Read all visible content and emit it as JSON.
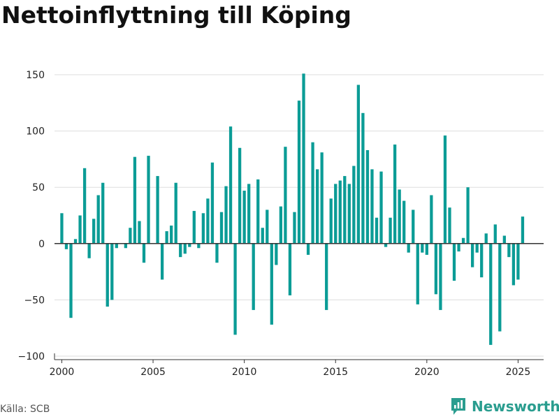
{
  "page": {
    "title": "Nettoinflyttning till Köping",
    "source": "Källa: SCB",
    "brand": "Newsworthy"
  },
  "colors": {
    "bar": "#0b9c96",
    "brand": "#2a9d8f",
    "grid": "#dddddd",
    "zero_line": "#333333"
  },
  "chart_data": {
    "type": "bar",
    "title": "Nettoinflyttning till Köping",
    "xlabel": "",
    "ylabel": "",
    "ylim": [
      -100,
      150
    ],
    "xlim": [
      1999.6,
      2026.4
    ],
    "yticks": [
      -100,
      -50,
      0,
      50,
      100,
      150
    ],
    "ytick_labels": [
      "−100",
      "−50",
      "0",
      "50",
      "100",
      "150"
    ],
    "xticks": [
      2000,
      2005,
      2010,
      2015,
      2020,
      2025
    ],
    "xtick_labels": [
      "2000",
      "2005",
      "2010",
      "2015",
      "2020",
      "2025"
    ],
    "grid": "horizontal",
    "frequency": "quarterly",
    "bar_width_years": 0.2,
    "series": [
      {
        "values": [
          {
            "x": "2000 Q1",
            "y": 27
          },
          {
            "x": "2000 Q2",
            "y": -5
          },
          {
            "x": "2000 Q3",
            "y": -66
          },
          {
            "x": "2000 Q4",
            "y": 4
          },
          {
            "x": "2001 Q1",
            "y": 25
          },
          {
            "x": "2001 Q2",
            "y": 67
          },
          {
            "x": "2001 Q3",
            "y": -13
          },
          {
            "x": "2001 Q4",
            "y": 22
          },
          {
            "x": "2002 Q1",
            "y": 43
          },
          {
            "x": "2002 Q2",
            "y": 54
          },
          {
            "x": "2002 Q3",
            "y": -56
          },
          {
            "x": "2002 Q4",
            "y": -50
          },
          {
            "x": "2003 Q1",
            "y": -4
          },
          {
            "x": "2003 Q2",
            "y": 0
          },
          {
            "x": "2003 Q3",
            "y": -4
          },
          {
            "x": "2003 Q4",
            "y": 14
          },
          {
            "x": "2004 Q1",
            "y": 77
          },
          {
            "x": "2004 Q2",
            "y": 20
          },
          {
            "x": "2004 Q3",
            "y": -17
          },
          {
            "x": "2004 Q4",
            "y": 78
          },
          {
            "x": "2005 Q1",
            "y": 0
          },
          {
            "x": "2005 Q2",
            "y": 60
          },
          {
            "x": "2005 Q3",
            "y": -32
          },
          {
            "x": "2005 Q4",
            "y": 11
          },
          {
            "x": "2006 Q1",
            "y": 16
          },
          {
            "x": "2006 Q2",
            "y": 54
          },
          {
            "x": "2006 Q3",
            "y": -12
          },
          {
            "x": "2006 Q4",
            "y": -9
          },
          {
            "x": "2007 Q1",
            "y": -3
          },
          {
            "x": "2007 Q2",
            "y": 29
          },
          {
            "x": "2007 Q3",
            "y": -4
          },
          {
            "x": "2007 Q4",
            "y": 27
          },
          {
            "x": "2008 Q1",
            "y": 40
          },
          {
            "x": "2008 Q2",
            "y": 72
          },
          {
            "x": "2008 Q3",
            "y": -17
          },
          {
            "x": "2008 Q4",
            "y": 28
          },
          {
            "x": "2009 Q1",
            "y": 51
          },
          {
            "x": "2009 Q2",
            "y": 104
          },
          {
            "x": "2009 Q3",
            "y": -81
          },
          {
            "x": "2009 Q4",
            "y": 85
          },
          {
            "x": "2010 Q1",
            "y": 47
          },
          {
            "x": "2010 Q2",
            "y": 53
          },
          {
            "x": "2010 Q3",
            "y": -59
          },
          {
            "x": "2010 Q4",
            "y": 57
          },
          {
            "x": "2011 Q1",
            "y": 14
          },
          {
            "x": "2011 Q2",
            "y": 30
          },
          {
            "x": "2011 Q3",
            "y": -72
          },
          {
            "x": "2011 Q4",
            "y": -19
          },
          {
            "x": "2012 Q1",
            "y": 33
          },
          {
            "x": "2012 Q2",
            "y": 86
          },
          {
            "x": "2012 Q3",
            "y": -46
          },
          {
            "x": "2012 Q4",
            "y": 28
          },
          {
            "x": "2013 Q1",
            "y": 127
          },
          {
            "x": "2013 Q2",
            "y": 151
          },
          {
            "x": "2013 Q3",
            "y": -10
          },
          {
            "x": "2013 Q4",
            "y": 90
          },
          {
            "x": "2014 Q1",
            "y": 66
          },
          {
            "x": "2014 Q2",
            "y": 81
          },
          {
            "x": "2014 Q3",
            "y": -59
          },
          {
            "x": "2014 Q4",
            "y": 40
          },
          {
            "x": "2015 Q1",
            "y": 53
          },
          {
            "x": "2015 Q2",
            "y": 56
          },
          {
            "x": "2015 Q3",
            "y": 60
          },
          {
            "x": "2015 Q4",
            "y": 53
          },
          {
            "x": "2016 Q1",
            "y": 69
          },
          {
            "x": "2016 Q2",
            "y": 141
          },
          {
            "x": "2016 Q3",
            "y": 116
          },
          {
            "x": "2016 Q4",
            "y": 83
          },
          {
            "x": "2017 Q1",
            "y": 66
          },
          {
            "x": "2017 Q2",
            "y": 23
          },
          {
            "x": "2017 Q3",
            "y": 64
          },
          {
            "x": "2017 Q4",
            "y": -3
          },
          {
            "x": "2018 Q1",
            "y": 23
          },
          {
            "x": "2018 Q2",
            "y": 88
          },
          {
            "x": "2018 Q3",
            "y": 48
          },
          {
            "x": "2018 Q4",
            "y": 38
          },
          {
            "x": "2019 Q1",
            "y": -8
          },
          {
            "x": "2019 Q2",
            "y": 30
          },
          {
            "x": "2019 Q3",
            "y": -54
          },
          {
            "x": "2019 Q4",
            "y": -8
          },
          {
            "x": "2020 Q1",
            "y": -10
          },
          {
            "x": "2020 Q2",
            "y": 43
          },
          {
            "x": "2020 Q3",
            "y": -45
          },
          {
            "x": "2020 Q4",
            "y": -59
          },
          {
            "x": "2021 Q1",
            "y": 96
          },
          {
            "x": "2021 Q2",
            "y": 32
          },
          {
            "x": "2021 Q3",
            "y": -33
          },
          {
            "x": "2021 Q4",
            "y": -7
          },
          {
            "x": "2022 Q1",
            "y": 5
          },
          {
            "x": "2022 Q2",
            "y": 50
          },
          {
            "x": "2022 Q3",
            "y": -21
          },
          {
            "x": "2022 Q4",
            "y": -8
          },
          {
            "x": "2023 Q1",
            "y": -30
          },
          {
            "x": "2023 Q2",
            "y": 9
          },
          {
            "x": "2023 Q3",
            "y": -90
          },
          {
            "x": "2023 Q4",
            "y": 17
          },
          {
            "x": "2024 Q1",
            "y": -78
          },
          {
            "x": "2024 Q2",
            "y": 7
          },
          {
            "x": "2024 Q3",
            "y": -12
          },
          {
            "x": "2024 Q4",
            "y": -37
          },
          {
            "x": "2025 Q1",
            "y": -32
          },
          {
            "x": "2025 Q2",
            "y": 24
          }
        ]
      }
    ]
  }
}
